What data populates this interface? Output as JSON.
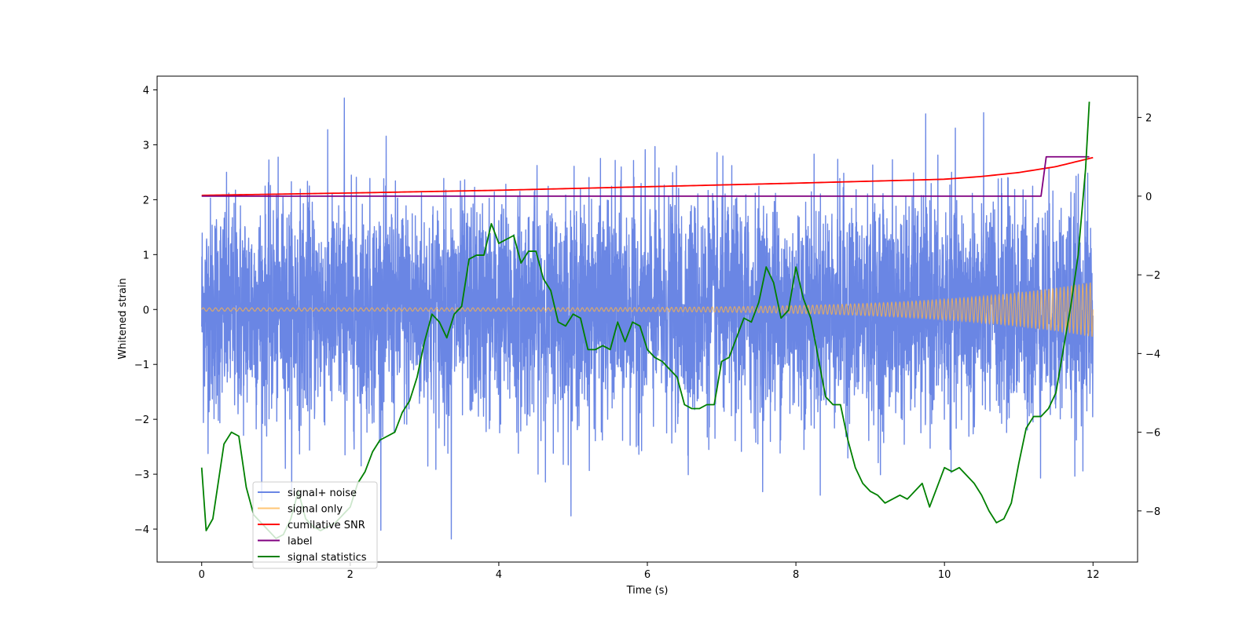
{
  "chart_data": {
    "type": "line",
    "title": "",
    "xlabel": "Time (s)",
    "ylabel": "Whitened strain",
    "y2label": "",
    "xlim": [
      -0.6,
      12.6
    ],
    "ylim": [
      -4.6,
      4.25
    ],
    "y2lim": [
      -9.3,
      3.05
    ],
    "x_ticks": [
      0,
      2,
      4,
      6,
      8,
      10,
      12
    ],
    "y_ticks": [
      -4,
      -3,
      -2,
      -1,
      0,
      1,
      2,
      3,
      4
    ],
    "y2_ticks": [
      -8,
      -6,
      -4,
      -2,
      0,
      2
    ],
    "legend_position": "lower-left",
    "series": [
      {
        "name": "signal+ noise",
        "color": "#6a86e4",
        "axis": "left",
        "kind": "noise",
        "x_range": [
          0,
          12
        ],
        "std": 1.0,
        "max": 3.85,
        "min": -4.18
      },
      {
        "name": "signal only",
        "color": "#ffb347",
        "axis": "left",
        "kind": "chirp",
        "x_range": [
          0,
          12
        ],
        "amplitude_start": 0.03,
        "amplitude_end": 0.5
      },
      {
        "name": "cumilative SNR",
        "color": "#ff0000",
        "axis": "right",
        "x": [
          0,
          2,
          4,
          6,
          8,
          9,
          10,
          10.5,
          11,
          11.5,
          12
        ],
        "values": [
          0.02,
          0.08,
          0.15,
          0.24,
          0.33,
          0.38,
          0.43,
          0.5,
          0.6,
          0.75,
          0.98
        ]
      },
      {
        "name": "label",
        "color": "#800080",
        "axis": "right",
        "x": [
          0,
          11.3,
          11.37,
          11.95
        ],
        "values": [
          0,
          0,
          1,
          1
        ]
      },
      {
        "name": "signal statistics",
        "color": "#008000",
        "axis": "right",
        "x": [
          0,
          0.06,
          0.15,
          0.3,
          0.4,
          0.5,
          0.6,
          0.7,
          0.8,
          0.9,
          1.0,
          1.1,
          1.2,
          1.3,
          1.4,
          1.5,
          1.6,
          1.7,
          1.8,
          2.0,
          2.1,
          2.2,
          2.3,
          2.4,
          2.5,
          2.6,
          2.7,
          2.8,
          2.9,
          3.0,
          3.1,
          3.2,
          3.3,
          3.4,
          3.5,
          3.6,
          3.7,
          3.8,
          3.9,
          4.0,
          4.1,
          4.2,
          4.3,
          4.4,
          4.5,
          4.6,
          4.7,
          4.8,
          4.9,
          5.0,
          5.1,
          5.2,
          5.3,
          5.4,
          5.5,
          5.6,
          5.7,
          5.8,
          5.9,
          6.0,
          6.1,
          6.2,
          6.3,
          6.4,
          6.5,
          6.6,
          6.7,
          6.8,
          6.9,
          7.0,
          7.1,
          7.2,
          7.3,
          7.4,
          7.5,
          7.6,
          7.7,
          7.8,
          7.9,
          8.0,
          8.1,
          8.2,
          8.3,
          8.4,
          8.5,
          8.6,
          8.7,
          8.8,
          8.9,
          9.0,
          9.1,
          9.2,
          9.3,
          9.4,
          9.5,
          9.6,
          9.7,
          9.8,
          9.9,
          10.0,
          10.1,
          10.2,
          10.3,
          10.4,
          10.5,
          10.6,
          10.7,
          10.8,
          10.9,
          11.0,
          11.1,
          11.2,
          11.3,
          11.4,
          11.5,
          11.6,
          11.7,
          11.8,
          11.9,
          11.95
        ],
        "values": [
          -6.9,
          -8.5,
          -8.2,
          -6.3,
          -6.0,
          -6.1,
          -7.4,
          -8.1,
          -8.3,
          -8.5,
          -8.7,
          -8.6,
          -8.2,
          -7.5,
          -8.2,
          -8.4,
          -8.5,
          -8.4,
          -8.3,
          -7.9,
          -7.3,
          -7.0,
          -6.5,
          -6.2,
          -6.1,
          -6.0,
          -5.5,
          -5.2,
          -4.6,
          -3.7,
          -3.0,
          -3.2,
          -3.6,
          -3.0,
          -2.8,
          -1.6,
          -1.5,
          -1.5,
          -0.7,
          -1.2,
          -1.1,
          -1.0,
          -1.7,
          -1.4,
          -1.4,
          -2.1,
          -2.4,
          -3.2,
          -3.3,
          -3.0,
          -3.1,
          -3.9,
          -3.9,
          -3.8,
          -3.9,
          -3.2,
          -3.7,
          -3.2,
          -3.3,
          -3.9,
          -4.1,
          -4.2,
          -4.4,
          -4.6,
          -5.3,
          -5.4,
          -5.4,
          -5.3,
          -5.3,
          -4.2,
          -4.1,
          -3.6,
          -3.1,
          -3.2,
          -2.7,
          -1.8,
          -2.2,
          -3.1,
          -2.9,
          -1.8,
          -2.6,
          -3.1,
          -4.1,
          -5.1,
          -5.3,
          -5.3,
          -6.2,
          -6.9,
          -7.3,
          -7.5,
          -7.6,
          -7.8,
          -7.7,
          -7.6,
          -7.7,
          -7.5,
          -7.3,
          -7.9,
          -7.4,
          -6.9,
          -7.0,
          -6.9,
          -7.1,
          -7.3,
          -7.6,
          -8.0,
          -8.3,
          -8.2,
          -7.8,
          -6.8,
          -5.9,
          -5.6,
          -5.6,
          -5.4,
          -5.0,
          -3.9,
          -2.8,
          -1.5,
          0.7,
          2.4
        ]
      }
    ]
  }
}
